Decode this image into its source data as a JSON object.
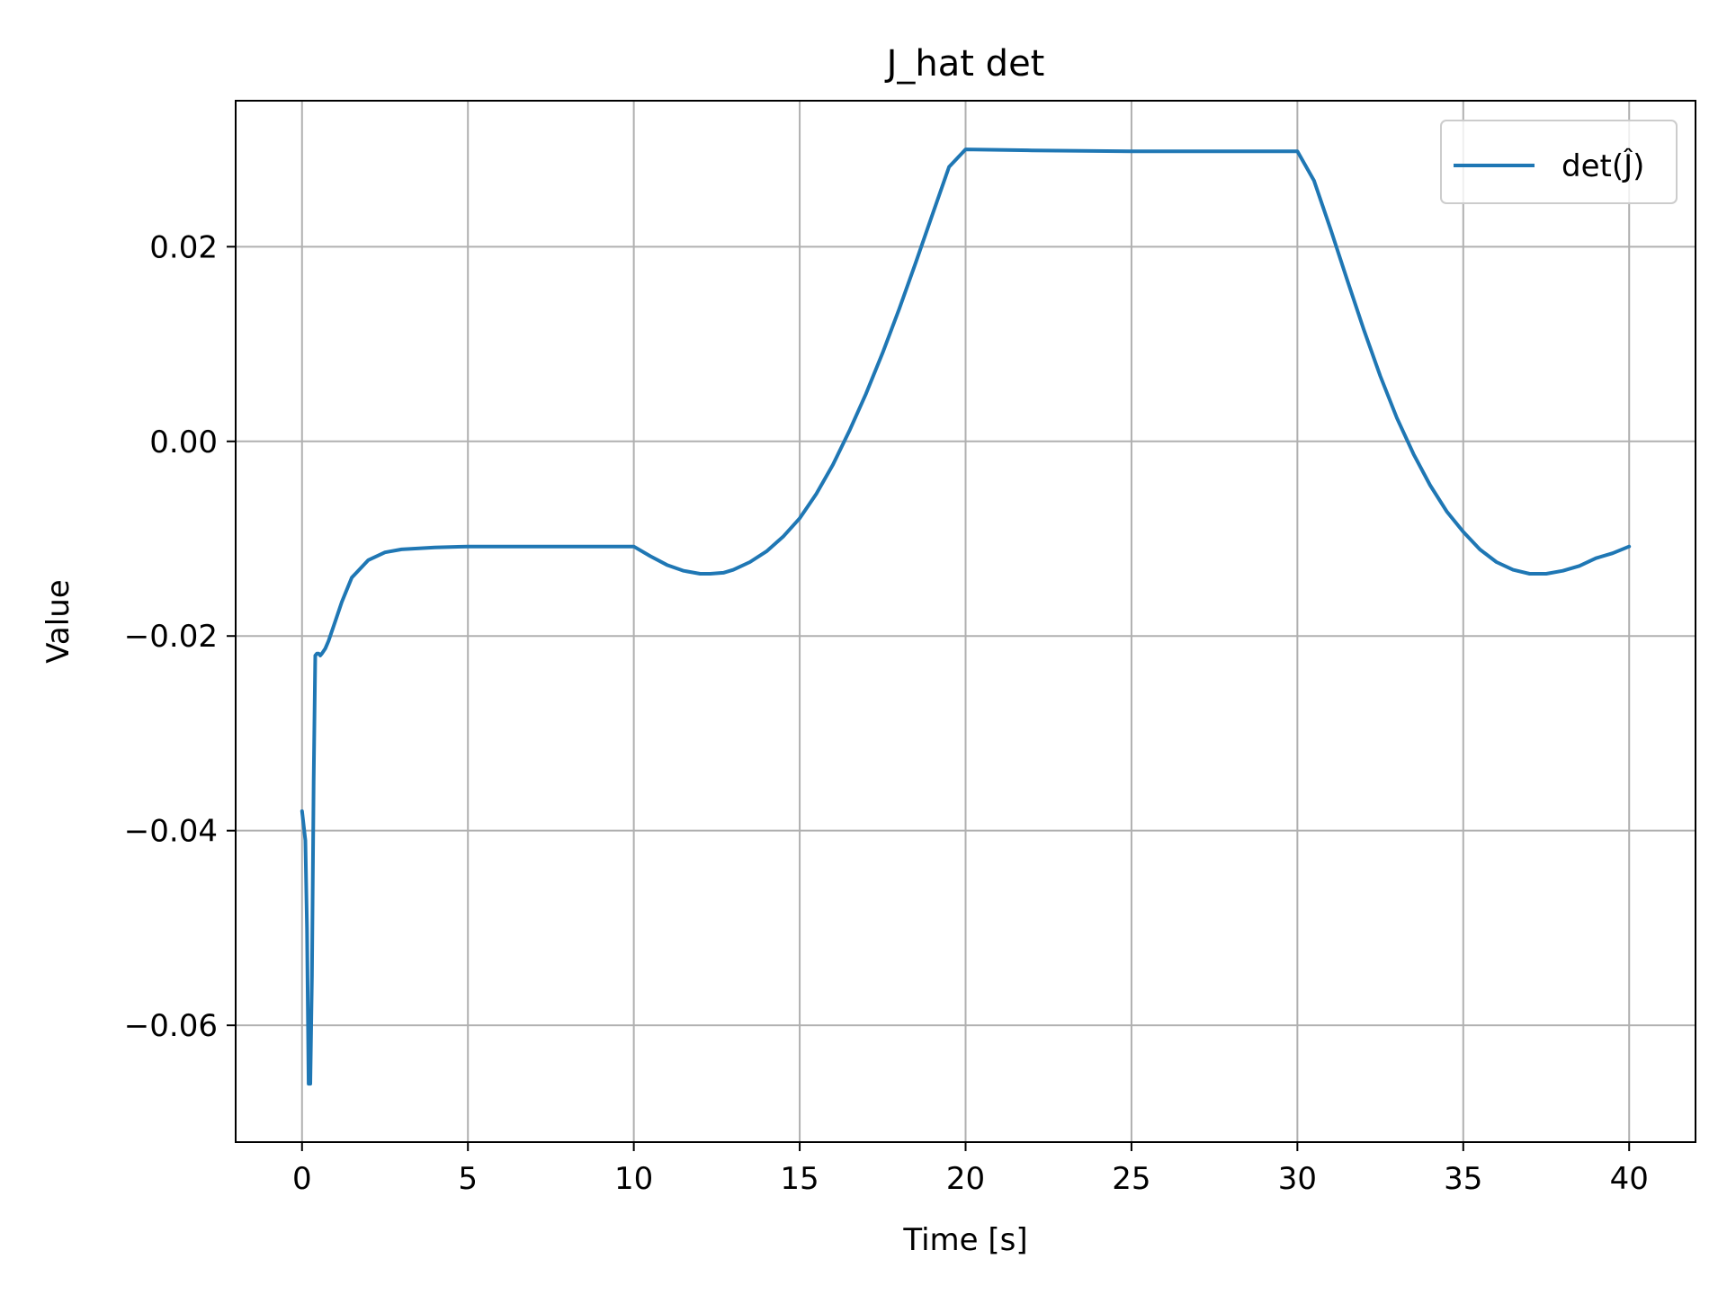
{
  "chart_data": {
    "type": "line",
    "title": "J_hat det",
    "xlabel": "Time [s]",
    "ylabel": "Value",
    "xlim": [
      -2,
      42
    ],
    "ylim": [
      -0.072,
      0.035
    ],
    "xticks": [
      0,
      5,
      10,
      15,
      20,
      25,
      30,
      35,
      40
    ],
    "xtick_labels": [
      "0",
      "5",
      "10",
      "15",
      "20",
      "25",
      "30",
      "35",
      "40"
    ],
    "yticks": [
      -0.06,
      -0.04,
      -0.02,
      0.0,
      0.02
    ],
    "ytick_labels": [
      "−0.06",
      "−0.04",
      "−0.02",
      "0.00",
      "0.02"
    ],
    "grid": true,
    "legend_position": "top-right",
    "series": [
      {
        "name": "det(Ĵ)",
        "color": "#1f77b4",
        "x": [
          0,
          0.1,
          0.15,
          0.2,
          0.25,
          0.3,
          0.35,
          0.4,
          0.45,
          0.5,
          0.55,
          0.6,
          0.7,
          0.8,
          1.0,
          1.2,
          1.5,
          2.0,
          2.5,
          3.0,
          4.0,
          5.0,
          6.0,
          7.0,
          8.0,
          9.0,
          10.0,
          10.5,
          11.0,
          11.5,
          12.0,
          12.3,
          12.7,
          13.0,
          13.5,
          14.0,
          14.5,
          15.0,
          15.5,
          16.0,
          16.5,
          17.0,
          17.5,
          18.0,
          18.5,
          19.0,
          19.5,
          20.0,
          22.0,
          25.0,
          28.0,
          30.0,
          30.5,
          31.0,
          31.5,
          32.0,
          32.5,
          33.0,
          33.5,
          34.0,
          34.5,
          35.0,
          35.5,
          36.0,
          36.5,
          37.0,
          37.5,
          38.0,
          38.5,
          39.0,
          39.5,
          40.0
        ],
        "y": [
          -0.038,
          -0.041,
          -0.05,
          -0.066,
          -0.066,
          -0.055,
          -0.035,
          -0.022,
          -0.0218,
          -0.0218,
          -0.022,
          -0.0218,
          -0.0213,
          -0.0205,
          -0.0185,
          -0.0165,
          -0.014,
          -0.0122,
          -0.0114,
          -0.0111,
          -0.0109,
          -0.0108,
          -0.0108,
          -0.0108,
          -0.0108,
          -0.0108,
          -0.0108,
          -0.0118,
          -0.0127,
          -0.0133,
          -0.0136,
          -0.0136,
          -0.0135,
          -0.0132,
          -0.0124,
          -0.0113,
          -0.0098,
          -0.0079,
          -0.0054,
          -0.0024,
          0.0011,
          0.0049,
          0.0091,
          0.0136,
          0.0184,
          0.0233,
          0.0282,
          0.03,
          0.0299,
          0.0298,
          0.0298,
          0.0298,
          0.0268,
          0.0218,
          0.0166,
          0.0115,
          0.0067,
          0.0024,
          -0.0013,
          -0.0045,
          -0.0072,
          -0.0093,
          -0.0111,
          -0.0124,
          -0.0132,
          -0.0136,
          -0.0136,
          -0.0133,
          -0.0128,
          -0.012,
          -0.0115,
          -0.0108
        ]
      }
    ]
  }
}
